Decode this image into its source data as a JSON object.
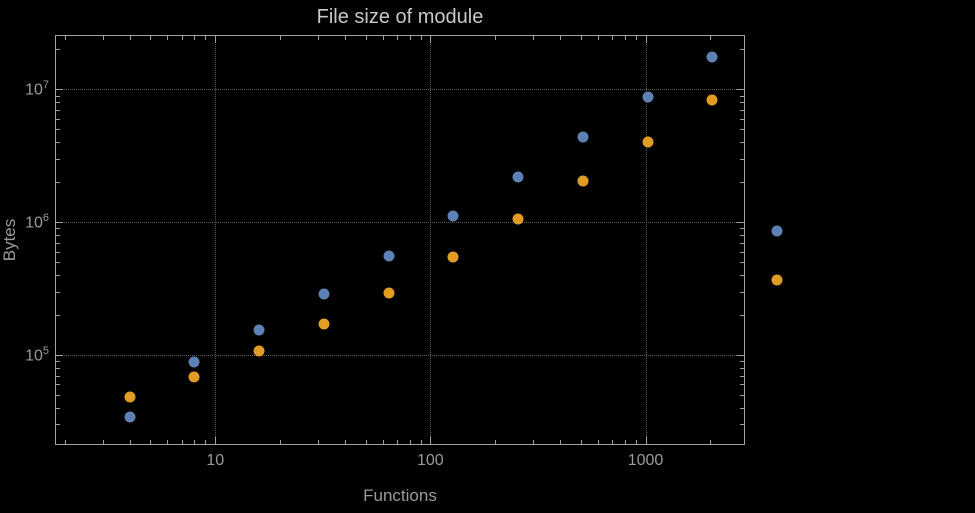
{
  "chart_data": {
    "type": "scatter",
    "title": "File size of module",
    "xlabel": "Functions",
    "ylabel": "Bytes",
    "xscale": "log",
    "yscale": "log",
    "grid": true,
    "legend": false,
    "xlim": [
      1.8,
      2900
    ],
    "ylim": [
      21000,
      25700000
    ],
    "xticks": [
      10,
      100,
      1000
    ],
    "xtick_labels": [
      "10",
      "100",
      "1000"
    ],
    "yticks": [
      100000,
      1000000,
      10000000
    ],
    "ytick_labels": [
      "10^5",
      "10^6",
      "10^7"
    ],
    "x": [
      4,
      8,
      16,
      32,
      64,
      128,
      256,
      512,
      1024,
      2048,
      4096
    ],
    "series": [
      {
        "name": "blue",
        "color": "#5e81b5",
        "values": [
          34000,
          88000,
          155000,
          290000,
          560000,
          1120000,
          2200000,
          4400000,
          8800000,
          17500000,
          860000
        ]
      },
      {
        "name": "orange",
        "color": "#e19c24",
        "values": [
          48000,
          68000,
          107000,
          170000,
          295000,
          550000,
          1050000,
          2050000,
          4000000,
          8300000,
          370000
        ]
      }
    ],
    "colors": {
      "background": "#000000",
      "frame": "#a2a2a2",
      "grid": "#5e5e5e",
      "title": "#c8c8c8",
      "labels": "#9b9b9b"
    }
  }
}
